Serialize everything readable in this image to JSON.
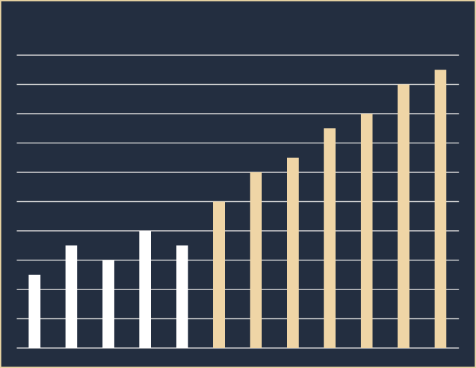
{
  "chart_data": {
    "type": "bar",
    "categories": [
      null,
      null,
      null,
      null,
      null,
      null,
      null,
      null,
      null,
      null,
      null,
      null
    ],
    "values": [
      2.5,
      3.5,
      3,
      4,
      3.5,
      5,
      6,
      6.5,
      7.5,
      8,
      9,
      9.5
    ],
    "colors": [
      "#ffffff",
      "#ffffff",
      "#ffffff",
      "#ffffff",
      "#ffffff",
      "#efd5a6",
      "#efd5a6",
      "#efd5a6",
      "#efd5a6",
      "#efd5a6",
      "#efd5a6",
      "#efd5a6"
    ],
    "ylim": [
      0,
      10
    ],
    "yticks": [
      0,
      1,
      2,
      3,
      4,
      5,
      6,
      7,
      8,
      9,
      10
    ],
    "grid": true
  }
}
